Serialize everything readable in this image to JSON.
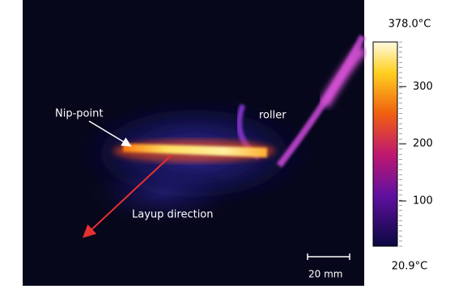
{
  "image": {
    "labels": {
      "nip_point": "Nip-point",
      "roller": "roller",
      "layup_direction": "Layup direction",
      "scale_bar": "20 mm"
    }
  },
  "colorbar": {
    "max": {
      "value": 378.0,
      "label": "378.0°C"
    },
    "min": {
      "value": 20.9,
      "label": "20.9°C"
    },
    "ticks": [
      300,
      200,
      100
    ]
  }
}
